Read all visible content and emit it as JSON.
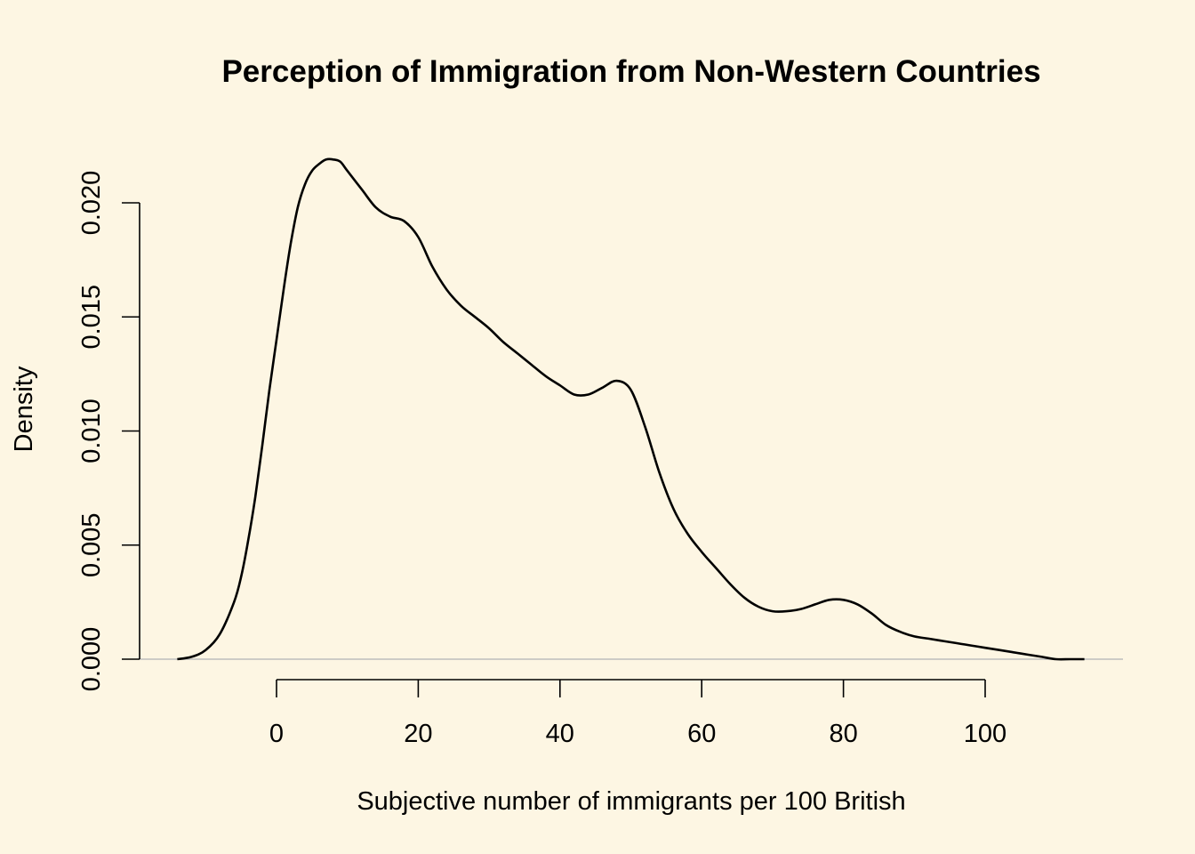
{
  "chart_data": {
    "type": "line",
    "title": "Perception of Immigration from Non-Western Countries",
    "xlabel": "Subjective number of immigrants per 100 British",
    "ylabel": "Density",
    "xlim": [
      -15,
      115
    ],
    "ylim": [
      0,
      0.022
    ],
    "x_ticks": [
      0,
      20,
      40,
      60,
      80,
      100
    ],
    "x_tick_labels": [
      "0",
      "20",
      "40",
      "60",
      "80",
      "100"
    ],
    "y_ticks": [
      0,
      0.005,
      0.01,
      0.015,
      0.02
    ],
    "y_tick_labels": [
      "0.000",
      "0.005",
      "0.010",
      "0.015",
      "0.020"
    ],
    "grid": false,
    "zero_line": true,
    "colors": {
      "background": "#fdf6e3",
      "line": "#000000",
      "zero_line": "#bdbdbd"
    },
    "series": [
      {
        "x": [
          -14,
          -12,
          -10,
          -8,
          -6,
          -5,
          -4,
          -3,
          -2,
          -1,
          0,
          1,
          2,
          3,
          4,
          5,
          6,
          7,
          8,
          9,
          10,
          12,
          14,
          16,
          18,
          20,
          22,
          24,
          26,
          28,
          30,
          32,
          34,
          36,
          38,
          40,
          42,
          44,
          46,
          48,
          50,
          52,
          54,
          56,
          58,
          60,
          62,
          64,
          66,
          68,
          70,
          72,
          74,
          76,
          78,
          80,
          82,
          84,
          86,
          88,
          90,
          92,
          94,
          96,
          98,
          100,
          102,
          104,
          106,
          108,
          110,
          112,
          114
        ],
        "y": [
          0.0,
          0.0001,
          0.0004,
          0.0011,
          0.0025,
          0.0036,
          0.0052,
          0.0071,
          0.0094,
          0.0118,
          0.014,
          0.0162,
          0.0182,
          0.0198,
          0.0208,
          0.0214,
          0.0217,
          0.0219,
          0.0219,
          0.0218,
          0.0214,
          0.0206,
          0.0198,
          0.0194,
          0.0192,
          0.0185,
          0.0172,
          0.0162,
          0.0155,
          0.015,
          0.0145,
          0.0139,
          0.0134,
          0.0129,
          0.0124,
          0.012,
          0.0116,
          0.0116,
          0.0119,
          0.0122,
          0.0118,
          0.0102,
          0.0082,
          0.0066,
          0.0055,
          0.0047,
          0.004,
          0.0033,
          0.0027,
          0.0023,
          0.0021,
          0.0021,
          0.0022,
          0.0024,
          0.0026,
          0.0026,
          0.0024,
          0.002,
          0.0015,
          0.0012,
          0.001,
          0.0009,
          0.0008,
          0.0007,
          0.0006,
          0.0005,
          0.0004,
          0.0003,
          0.0002,
          0.0001,
          0.0,
          0.0,
          0.0
        ]
      }
    ]
  }
}
